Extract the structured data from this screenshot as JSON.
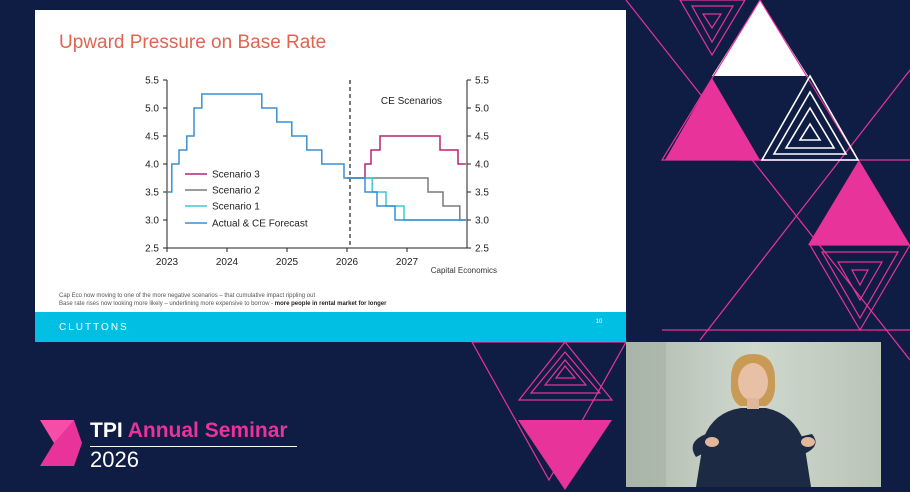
{
  "slide": {
    "title": "Upward Pressure on Base Rate",
    "caption_line1": "Cap Eco now moving to one of the more negative scenarios – that cumulative impact rippling out",
    "caption_line2_plain": "Base rate rises now looking more likely – underlining more expensive to borrow  - ",
    "caption_line2_bold": "more people in rental market for longer",
    "footer_brand": "CLUTTONS",
    "page_number": "10"
  },
  "event": {
    "name_prefix": "TPI",
    "name_accent": "Annual Seminar",
    "year": "2026"
  },
  "colors": {
    "background": "#0f1d45",
    "magenta": "#e8339a",
    "footer_cyan": "#00bfe3",
    "title_orange": "#e0644e"
  },
  "chart_data": {
    "type": "line",
    "title": "",
    "source": "Capital Economics",
    "annotation": "CE Scenarios",
    "divider_x": 2026.05,
    "xlim": [
      2023,
      2028
    ],
    "ylim": [
      2.5,
      5.5
    ],
    "x_ticks": [
      "2023",
      "2024",
      "2025",
      "2026",
      "2027"
    ],
    "y_ticks": [
      "2.5",
      "3.0",
      "3.5",
      "4.0",
      "4.5",
      "5.0",
      "5.5"
    ],
    "grid": false,
    "legend_position": "left-center",
    "series": [
      {
        "name": "Scenario 3",
        "color": "#b5237a",
        "points": [
          [
            2026.0,
            3.75
          ],
          [
            2026.3,
            3.75
          ],
          [
            2026.3,
            4.0
          ],
          [
            2026.4,
            4.0
          ],
          [
            2026.4,
            4.25
          ],
          [
            2026.55,
            4.25
          ],
          [
            2026.55,
            4.5
          ],
          [
            2027.55,
            4.5
          ],
          [
            2027.55,
            4.25
          ],
          [
            2027.85,
            4.25
          ],
          [
            2027.85,
            4.0
          ],
          [
            2027.98,
            4.0
          ]
        ]
      },
      {
        "name": "Scenario 2",
        "color": "#7a7a7a",
        "points": [
          [
            2026.0,
            3.75
          ],
          [
            2027.35,
            3.75
          ],
          [
            2027.35,
            3.5
          ],
          [
            2027.6,
            3.5
          ],
          [
            2027.6,
            3.25
          ],
          [
            2027.88,
            3.25
          ],
          [
            2027.88,
            3.0
          ],
          [
            2027.98,
            3.0
          ]
        ]
      },
      {
        "name": "Scenario 1",
        "color": "#3ccad0",
        "points": [
          [
            2026.0,
            3.75
          ],
          [
            2026.42,
            3.75
          ],
          [
            2026.42,
            3.5
          ],
          [
            2026.65,
            3.5
          ],
          [
            2026.65,
            3.25
          ],
          [
            2026.95,
            3.25
          ],
          [
            2026.95,
            3.0
          ],
          [
            2027.98,
            3.0
          ]
        ]
      },
      {
        "name": "Actual & CE Forecast",
        "color": "#3a8fd2",
        "points": [
          [
            2023.0,
            3.5
          ],
          [
            2023.08,
            3.5
          ],
          [
            2023.08,
            4.0
          ],
          [
            2023.2,
            4.0
          ],
          [
            2023.2,
            4.25
          ],
          [
            2023.33,
            4.25
          ],
          [
            2023.33,
            4.5
          ],
          [
            2023.45,
            4.5
          ],
          [
            2023.45,
            5.0
          ],
          [
            2023.58,
            5.0
          ],
          [
            2023.58,
            5.25
          ],
          [
            2024.58,
            5.25
          ],
          [
            2024.58,
            5.0
          ],
          [
            2024.83,
            5.0
          ],
          [
            2024.83,
            4.75
          ],
          [
            2025.08,
            4.75
          ],
          [
            2025.08,
            4.5
          ],
          [
            2025.33,
            4.5
          ],
          [
            2025.33,
            4.25
          ],
          [
            2025.58,
            4.25
          ],
          [
            2025.58,
            4.0
          ],
          [
            2025.95,
            4.0
          ],
          [
            2025.95,
            3.75
          ],
          [
            2026.3,
            3.75
          ],
          [
            2026.3,
            3.5
          ],
          [
            2026.5,
            3.5
          ],
          [
            2026.5,
            3.25
          ],
          [
            2026.8,
            3.25
          ],
          [
            2026.8,
            3.0
          ],
          [
            2027.98,
            3.0
          ]
        ]
      }
    ]
  }
}
